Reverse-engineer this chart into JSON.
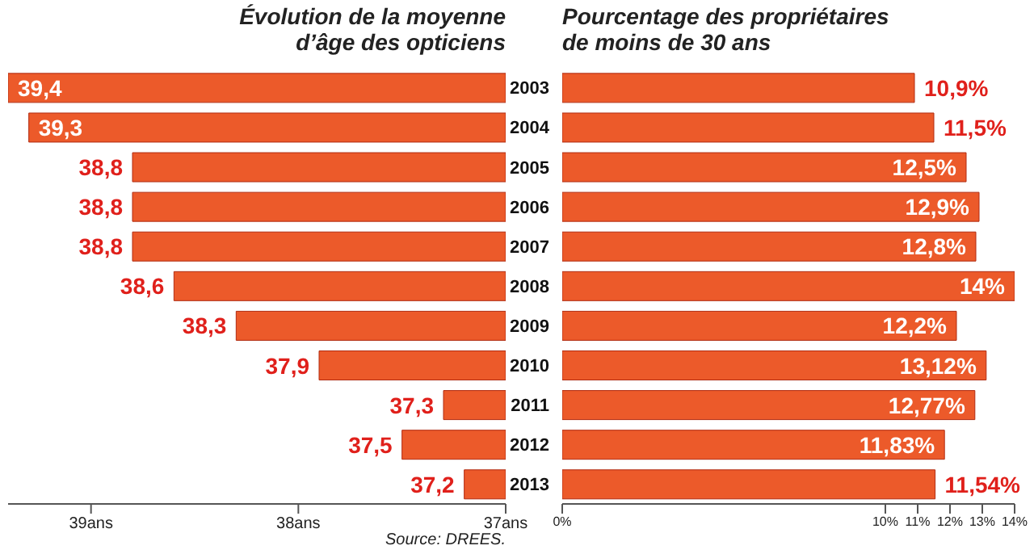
{
  "chart_data": [
    {
      "type": "bar",
      "orientation": "horizontal",
      "title": "Évolution de la moyenne\nd’âge des opticiens",
      "categories": [
        "2003",
        "2004",
        "2005",
        "2006",
        "2007",
        "2008",
        "2009",
        "2010",
        "2011",
        "2012",
        "2013"
      ],
      "values": [
        39.4,
        39.3,
        38.8,
        38.8,
        38.8,
        38.6,
        38.3,
        37.9,
        37.3,
        37.5,
        37.2
      ],
      "value_labels": [
        "39,4",
        "39,3",
        "38,8",
        "38,8",
        "38,8",
        "38,6",
        "38,3",
        "37,9",
        "37,3",
        "37,5",
        "37,2"
      ],
      "color": "#ec5a2a",
      "xlim": [
        39.4,
        37
      ],
      "xticks": [
        {
          "value": 39,
          "label": "39ans"
        },
        {
          "value": 38,
          "label": "38ans"
        },
        {
          "value": 37,
          "label": "37ans"
        }
      ],
      "tick_labels": "x",
      "annotations": [
        "Source: DREES."
      ]
    },
    {
      "type": "bar",
      "orientation": "horizontal",
      "title": "Pourcentage des propriétaires\nde moins de 30 ans",
      "categories": [
        "2003",
        "2004",
        "2005",
        "2006",
        "2007",
        "2008",
        "2009",
        "2010",
        "2011",
        "2012",
        "2013"
      ],
      "values": [
        10.9,
        11.5,
        12.5,
        12.9,
        12.8,
        14,
        12.2,
        13.12,
        12.77,
        11.83,
        11.54
      ],
      "value_labels": [
        "10,9%",
        "11,5%",
        "12,5%",
        "12,9%",
        "12,8%",
        "14%",
        "12,2%",
        "13,12%",
        "12,77%",
        "11,83%",
        "11,54%"
      ],
      "color": "#ec5a2a",
      "xlim": [
        0,
        14
      ],
      "xticks": [
        {
          "value": 0,
          "label": "0%"
        },
        {
          "value": 10,
          "label": "10%"
        },
        {
          "value": 11,
          "label": "11%"
        },
        {
          "value": 12,
          "label": "12%"
        },
        {
          "value": 13,
          "label": "13%"
        },
        {
          "value": 14,
          "label": "14%"
        }
      ]
    }
  ]
}
